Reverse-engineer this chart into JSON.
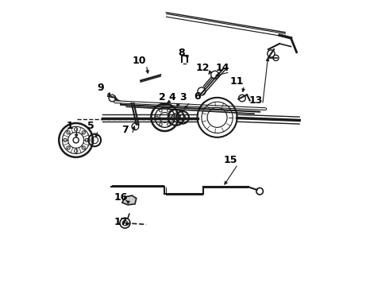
{
  "bg_color": "#ffffff",
  "line_color": "#1a1a1a",
  "label_color": "#000000",
  "label_fontsize": 9,
  "fig_width": 4.9,
  "fig_height": 3.6,
  "dpi": 100
}
